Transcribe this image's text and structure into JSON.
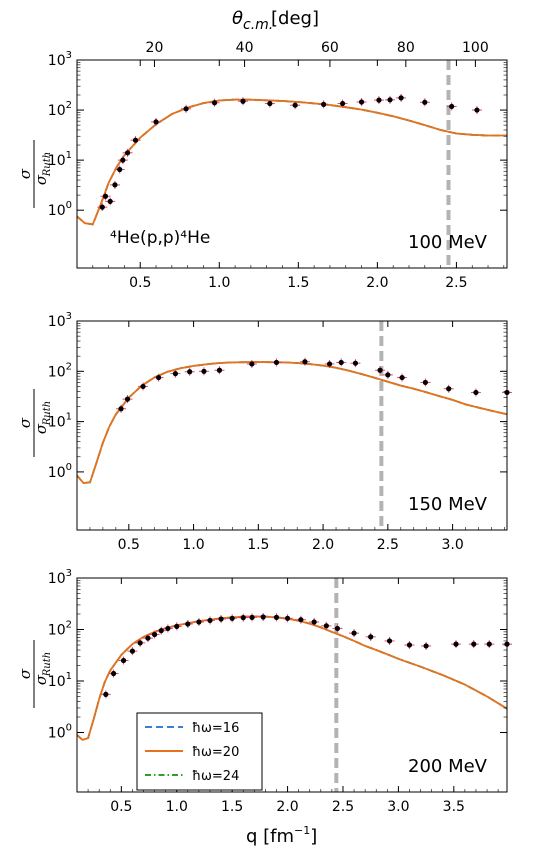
{
  "figure": {
    "xlabel": "q [fm",
    "xlabel_sup": "−1",
    "xlabel_end": "]",
    "ylabel_num": "σ",
    "ylabel_den": "σ",
    "ylabel_den_sub": "Ruth",
    "top_axis_label": "θ",
    "top_axis_label_sub": "c.m.",
    "top_axis_label_unit": "[deg]",
    "reaction_label": "⁴He(p,p)⁴He",
    "colors": {
      "hw16": "#3a7fd5",
      "hw20": "#e8711b",
      "hw24": "#2ca02c",
      "data": "#000000",
      "errorbar": "#e8436f",
      "vline": "#b3b3b3"
    },
    "legend": [
      {
        "label": "ħω=16",
        "style": "dashed",
        "color": "#3a7fd5"
      },
      {
        "label": "ħω=20",
        "style": "solid",
        "color": "#e8711b"
      },
      {
        "label": "ħω=24",
        "style": "dashdot",
        "color": "#2ca02c"
      }
    ]
  },
  "chart_data": [
    {
      "type": "line",
      "energy_label": "100 MeV",
      "xlim": [
        0.1,
        2.82
      ],
      "ylim": [
        0.07,
        1000
      ],
      "yscale": "log",
      "xticks": [
        0.5,
        1.0,
        1.5,
        2.0,
        2.5
      ],
      "yticks": [
        1,
        10,
        100,
        1000
      ],
      "top_axis": {
        "label": "θc.m. [deg]",
        "ticks": [
          20,
          40,
          60,
          80,
          100
        ],
        "tick_q": [
          0.59,
          1.16,
          1.7,
          2.18,
          2.62
        ]
      },
      "vline_x": 2.45,
      "series": [
        {
          "name": "ħω=16",
          "x": [
            0.1,
            0.15,
            0.2,
            0.25,
            0.3,
            0.35,
            0.4,
            0.5,
            0.6,
            0.7,
            0.8,
            0.9,
            1.0,
            1.1,
            1.2,
            1.3,
            1.4,
            1.5,
            1.6,
            1.7,
            1.8,
            1.9,
            2.0,
            2.1,
            2.2,
            2.3,
            2.4,
            2.5,
            2.6,
            2.7,
            2.82
          ],
          "y": [
            0.75,
            0.55,
            0.52,
            1.3,
            3.5,
            7.2,
            12.5,
            28,
            52,
            83,
            112,
            138,
            155,
            162,
            161,
            157,
            152,
            145,
            136,
            126,
            114,
            102,
            88,
            75,
            62,
            50,
            40,
            34,
            32,
            31,
            31
          ]
        },
        {
          "name": "ħω=20",
          "x": [
            0.1,
            0.15,
            0.2,
            0.25,
            0.3,
            0.35,
            0.4,
            0.5,
            0.6,
            0.7,
            0.8,
            0.9,
            1.0,
            1.1,
            1.2,
            1.3,
            1.4,
            1.5,
            1.6,
            1.7,
            1.8,
            1.9,
            2.0,
            2.1,
            2.2,
            2.3,
            2.4,
            2.5,
            2.6,
            2.7,
            2.82
          ],
          "y": [
            0.75,
            0.55,
            0.52,
            1.3,
            3.5,
            7.2,
            12.5,
            28,
            52,
            83,
            112,
            138,
            155,
            162,
            161,
            157,
            152,
            145,
            136,
            126,
            114,
            102,
            88,
            75,
            62,
            50,
            40,
            34,
            32,
            31,
            31
          ]
        },
        {
          "name": "ħω=24",
          "x": [
            0.1,
            0.15,
            0.2,
            0.25,
            0.3,
            0.35,
            0.4,
            0.5,
            0.6,
            0.7,
            0.8,
            0.9,
            1.0,
            1.1,
            1.2,
            1.3,
            1.4,
            1.5,
            1.6,
            1.7,
            1.8,
            1.9,
            2.0,
            2.1,
            2.2,
            2.3,
            2.4,
            2.5,
            2.6,
            2.7,
            2.82
          ],
          "y": [
            0.75,
            0.55,
            0.52,
            1.3,
            3.5,
            7.2,
            12.5,
            28,
            52,
            83,
            112,
            138,
            155,
            162,
            161,
            157,
            152,
            145,
            136,
            126,
            114,
            102,
            88,
            75,
            62,
            50,
            40,
            34,
            32,
            31,
            31
          ]
        }
      ],
      "data_points": {
        "x": [
          0.26,
          0.28,
          0.31,
          0.34,
          0.37,
          0.39,
          0.42,
          0.47,
          0.6,
          0.79,
          0.97,
          1.15,
          1.32,
          1.48,
          1.66,
          1.78,
          1.9,
          2.01,
          2.08,
          2.15,
          2.3,
          2.47,
          2.63
        ],
        "y": [
          1.15,
          1.9,
          1.5,
          3.2,
          6.5,
          10,
          14,
          25,
          58,
          106,
          140,
          150,
          135,
          125,
          130,
          135,
          145,
          158,
          160,
          175,
          143,
          118,
          100
        ]
      }
    },
    {
      "type": "line",
      "energy_label": "150 MeV",
      "xlim": [
        0.1,
        3.42
      ],
      "ylim": [
        0.07,
        1000
      ],
      "yscale": "log",
      "xticks": [
        0.5,
        1.0,
        1.5,
        2.0,
        2.5,
        3.0
      ],
      "yticks": [
        1,
        10,
        100,
        1000
      ],
      "vline_x": 2.45,
      "series": [
        {
          "name": "ħω=16",
          "x": [
            0.1,
            0.15,
            0.2,
            0.25,
            0.3,
            0.35,
            0.4,
            0.5,
            0.6,
            0.7,
            0.8,
            0.9,
            1.0,
            1.1,
            1.2,
            1.3,
            1.4,
            1.5,
            1.6,
            1.7,
            1.8,
            1.9,
            2.0,
            2.1,
            2.2,
            2.3,
            2.4,
            2.5,
            2.6,
            2.7,
            2.8,
            2.9,
            3.0,
            3.1,
            3.2,
            3.3,
            3.42
          ],
          "y": [
            0.85,
            0.6,
            0.62,
            1.5,
            3.8,
            8,
            14,
            30,
            52,
            76,
            98,
            115,
            128,
            138,
            146,
            150,
            152,
            153,
            152,
            150,
            146,
            139,
            130,
            118,
            103,
            88,
            74,
            62,
            52,
            45,
            38,
            32,
            27,
            22,
            19,
            16.5,
            14
          ]
        },
        {
          "name": "ħω=20",
          "x": [
            0.1,
            0.15,
            0.2,
            0.25,
            0.3,
            0.35,
            0.4,
            0.5,
            0.6,
            0.7,
            0.8,
            0.9,
            1.0,
            1.1,
            1.2,
            1.3,
            1.4,
            1.5,
            1.6,
            1.7,
            1.8,
            1.9,
            2.0,
            2.1,
            2.2,
            2.3,
            2.4,
            2.5,
            2.6,
            2.7,
            2.8,
            2.9,
            3.0,
            3.1,
            3.2,
            3.3,
            3.42
          ],
          "y": [
            0.85,
            0.6,
            0.62,
            1.5,
            3.8,
            8,
            14,
            30,
            52,
            76,
            98,
            115,
            128,
            138,
            146,
            150,
            152,
            153,
            152,
            150,
            146,
            139,
            130,
            118,
            103,
            88,
            74,
            62,
            52,
            45,
            38,
            32,
            27,
            22,
            19,
            16.5,
            14
          ]
        },
        {
          "name": "ħω=24",
          "x": [
            0.1,
            0.15,
            0.2,
            0.25,
            0.3,
            0.35,
            0.4,
            0.5,
            0.6,
            0.7,
            0.8,
            0.9,
            1.0,
            1.1,
            1.2,
            1.3,
            1.4,
            1.5,
            1.6,
            1.7,
            1.8,
            1.9,
            2.0,
            2.1,
            2.2,
            2.3,
            2.4,
            2.5,
            2.6,
            2.7,
            2.8,
            2.9,
            3.0,
            3.1,
            3.2,
            3.3,
            3.42
          ],
          "y": [
            0.85,
            0.6,
            0.62,
            1.5,
            3.8,
            8,
            14,
            30,
            52,
            76,
            98,
            115,
            128,
            138,
            146,
            150,
            152,
            153,
            152,
            150,
            146,
            139,
            130,
            118,
            103,
            88,
            74,
            62,
            52,
            45,
            38,
            32,
            27,
            22,
            19,
            16.5,
            14
          ]
        }
      ],
      "data_points": {
        "x": [
          0.44,
          0.49,
          0.61,
          0.73,
          0.86,
          0.97,
          1.08,
          1.2,
          1.45,
          1.64,
          1.86,
          2.05,
          2.14,
          2.25,
          2.44,
          2.5,
          2.61,
          2.79,
          2.97,
          3.18,
          3.42
        ],
        "y": [
          18,
          28,
          50,
          75,
          90,
          98,
          100,
          105,
          140,
          150,
          155,
          140,
          150,
          145,
          105,
          85,
          75,
          60,
          45,
          38,
          38
        ]
      }
    },
    {
      "type": "line",
      "energy_label": "200 MeV",
      "xlim": [
        0.1,
        3.98
      ],
      "ylim": [
        0.07,
        1000
      ],
      "yscale": "log",
      "xticks": [
        0.5,
        1.0,
        1.5,
        2.0,
        2.5,
        3.0,
        3.5
      ],
      "yticks": [
        1,
        10,
        100,
        1000
      ],
      "vline_x": 2.44,
      "series": [
        {
          "name": "ħω=16",
          "x": [
            0.1,
            0.15,
            0.2,
            0.25,
            0.3,
            0.35,
            0.4,
            0.5,
            0.6,
            0.7,
            0.8,
            0.9,
            1.0,
            1.2,
            1.4,
            1.6,
            1.7,
            1.8,
            1.9,
            2.0,
            2.1,
            2.2,
            2.3,
            2.4,
            2.5,
            2.6,
            2.7,
            2.8,
            2.9,
            3.0,
            3.2,
            3.4,
            3.6,
            3.8,
            3.98
          ],
          "y": [
            0.9,
            0.72,
            0.78,
            1.8,
            4.5,
            9.5,
            16,
            32,
            52,
            72,
            90,
            106,
            120,
            145,
            165,
            178,
            180,
            178,
            172,
            162,
            148,
            130,
            110,
            90,
            74,
            60,
            48,
            40,
            33,
            27,
            19,
            13,
            8.5,
            5,
            2.9
          ]
        },
        {
          "name": "ħω=20",
          "x": [
            0.1,
            0.15,
            0.2,
            0.25,
            0.3,
            0.35,
            0.4,
            0.5,
            0.6,
            0.7,
            0.8,
            0.9,
            1.0,
            1.2,
            1.4,
            1.6,
            1.7,
            1.8,
            1.9,
            2.0,
            2.1,
            2.2,
            2.3,
            2.4,
            2.5,
            2.6,
            2.7,
            2.8,
            2.9,
            3.0,
            3.2,
            3.4,
            3.6,
            3.8,
            3.98
          ],
          "y": [
            0.9,
            0.72,
            0.78,
            1.8,
            4.5,
            9.5,
            16,
            32,
            52,
            72,
            90,
            106,
            120,
            145,
            165,
            178,
            180,
            178,
            172,
            162,
            148,
            130,
            110,
            90,
            74,
            60,
            48,
            40,
            33,
            27,
            19,
            13,
            8.5,
            5,
            2.9
          ]
        },
        {
          "name": "ħω=24",
          "x": [
            0.1,
            0.15,
            0.2,
            0.25,
            0.3,
            0.35,
            0.4,
            0.5,
            0.6,
            0.7,
            0.8,
            0.9,
            1.0,
            1.2,
            1.4,
            1.6,
            1.7,
            1.8,
            1.9,
            2.0,
            2.1,
            2.2,
            2.3,
            2.4,
            2.5,
            2.6,
            2.7,
            2.8,
            2.9,
            3.0,
            3.2,
            3.4,
            3.6,
            3.8,
            3.98
          ],
          "y": [
            0.9,
            0.72,
            0.78,
            1.8,
            4.5,
            9.5,
            16,
            32,
            52,
            72,
            90,
            106,
            120,
            145,
            165,
            178,
            180,
            178,
            172,
            162,
            148,
            130,
            110,
            90,
            74,
            60,
            48,
            40,
            33,
            27,
            19,
            13,
            8.5,
            5,
            2.9
          ]
        }
      ],
      "data_points": {
        "x": [
          0.36,
          0.43,
          0.52,
          0.6,
          0.67,
          0.74,
          0.8,
          0.86,
          0.92,
          1.0,
          1.1,
          1.2,
          1.3,
          1.4,
          1.5,
          1.6,
          1.68,
          1.78,
          1.9,
          2.0,
          2.12,
          2.24,
          2.35,
          2.45,
          2.6,
          2.75,
          2.92,
          3.1,
          3.25,
          3.52,
          3.68,
          3.82,
          3.98
        ],
        "y": [
          5.5,
          14,
          25,
          38,
          55,
          68,
          80,
          95,
          105,
          115,
          128,
          140,
          150,
          160,
          165,
          170,
          172,
          175,
          172,
          165,
          155,
          140,
          118,
          105,
          85,
          72,
          60,
          50,
          48,
          52,
          52,
          52,
          52
        ]
      }
    }
  ]
}
